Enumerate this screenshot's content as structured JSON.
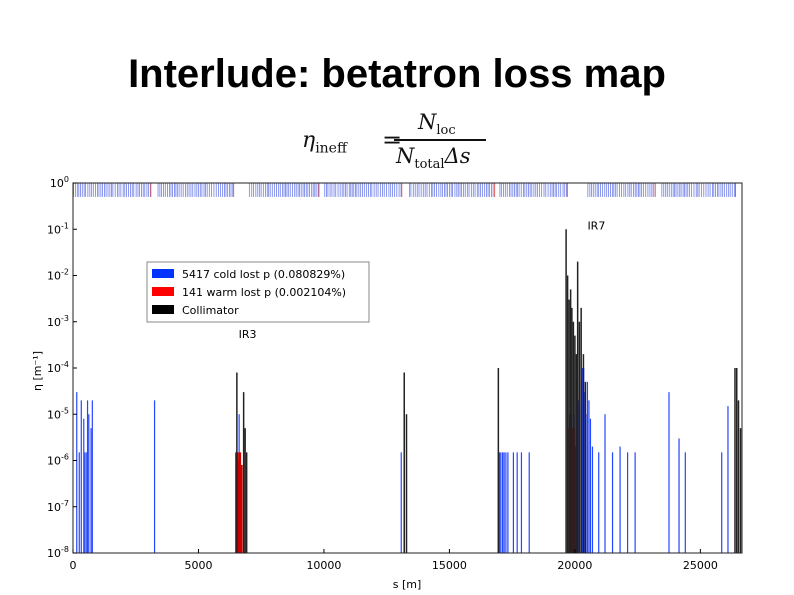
{
  "slide": {
    "title": "Interlude: betatron loss map",
    "formula": {
      "lhs": "η",
      "lhs_sub": "ineff",
      "eq": "=",
      "num": "N",
      "num_sub": "loc",
      "den": "N",
      "den_sub": "total",
      "den_tail": "Δs"
    }
  },
  "chart_data": {
    "type": "bar",
    "title": "",
    "xlabel": "s [m]",
    "ylabel": "η [m⁻¹]",
    "xlim": [
      0,
      26659
    ],
    "ylim": [
      1e-08,
      1
    ],
    "yscale": "log",
    "xticks": [
      0,
      5000,
      10000,
      15000,
      20000,
      25000
    ],
    "xtick_labels": [
      "0",
      "5000",
      "10000",
      "15000",
      "20000",
      "25000"
    ],
    "yticks": [
      1e-08,
      1e-07,
      1e-06,
      1e-05,
      0.0001,
      0.001,
      0.01,
      0.1,
      1
    ],
    "ytick_labels": [
      {
        "base": "10",
        "exp": "-8"
      },
      {
        "base": "10",
        "exp": "-7"
      },
      {
        "base": "10",
        "exp": "-6"
      },
      {
        "base": "10",
        "exp": "-5"
      },
      {
        "base": "10",
        "exp": "-4"
      },
      {
        "base": "10",
        "exp": "-3"
      },
      {
        "base": "10",
        "exp": "-2"
      },
      {
        "base": "10",
        "exp": "-1"
      },
      {
        "base": "10",
        "exp": "0"
      }
    ],
    "annotations": [
      {
        "text": "IR7",
        "x": 20500,
        "y": 0.1
      },
      {
        "text": "IR3",
        "x": 6600,
        "y": 0.00045
      }
    ],
    "legend": {
      "placement": "upper-left",
      "entries": [
        {
          "label": "5417 cold lost p (0.080829%)",
          "color": "#0033ff"
        },
        {
          "label": "141 warm lost p (0.002104%)",
          "color": "#ff0000"
        },
        {
          "label": "Collimator",
          "color": "#000000"
        }
      ]
    },
    "aperture_band": {
      "ymin": 0.5,
      "ymax": 1,
      "color": "#6f7fe8",
      "warm_color": "#e06060",
      "gaps": [
        [
          3100,
          3300
        ],
        [
          6400,
          7000
        ],
        [
          9800,
          10000
        ],
        [
          13100,
          13400
        ],
        [
          16800,
          17000
        ],
        [
          19700,
          20500
        ],
        [
          23200,
          23400
        ],
        [
          26400,
          26659
        ]
      ]
    },
    "series": [
      {
        "name": "5417 cold lost p (0.080829%)",
        "color": "#2646ff",
        "x": [
          150,
          250,
          330,
          430,
          480,
          550,
          580,
          630,
          720,
          770,
          3250,
          6550,
          6620,
          13080,
          16950,
          17000,
          17050,
          17120,
          17180,
          17250,
          17330,
          17550,
          17700,
          17870,
          18180,
          19950,
          20080,
          20150,
          20260,
          20300,
          20350,
          20390,
          20440,
          20500,
          20560,
          20620,
          20700,
          20950,
          21200,
          21500,
          21800,
          22100,
          22400,
          23750,
          24150,
          24400,
          25850,
          26100
        ],
        "values": [
          3e-05,
          1.5e-06,
          2e-05,
          8e-06,
          1.5e-06,
          1.5e-06,
          2e-05,
          1e-05,
          5e-06,
          2e-05,
          2e-05,
          1.5e-06,
          1e-05,
          1.5e-06,
          1.5e-06,
          1.5e-06,
          1.5e-06,
          1.5e-06,
          1.5e-06,
          1.5e-06,
          1.5e-06,
          1.5e-06,
          1.5e-06,
          1.5e-06,
          1.5e-06,
          1e-05,
          5e-06,
          2e-05,
          5e-05,
          0.0001,
          0.0001,
          3e-05,
          1e-05,
          5e-05,
          2e-05,
          8e-06,
          2e-06,
          1.5e-06,
          1e-05,
          1.5e-06,
          2e-06,
          1.5e-06,
          1.5e-06,
          3e-05,
          3e-06,
          1.5e-06,
          1.5e-06,
          1.5e-05
        ]
      },
      {
        "name": "141 warm lost p (0.002104%)",
        "color": "#cc0000",
        "x": [
          6520,
          6580,
          6640,
          6700,
          19790,
          19830,
          19880,
          19920,
          19960,
          20010
        ],
        "values": [
          1.5e-06,
          1e-06,
          1.5e-06,
          8e-07,
          5e-06,
          1e-05,
          3e-06,
          1.5e-06,
          5e-06,
          2e-06
        ],
        "width": 3
      },
      {
        "name": "Collimator",
        "color": "#222222",
        "x": [
          6530,
          6800,
          6860,
          6920,
          13200,
          13290,
          16950,
          19650,
          19710,
          19770,
          19830,
          19880,
          19940,
          20000,
          20060,
          20110,
          20180,
          20250,
          20340,
          20420,
          26380,
          26450,
          26520,
          26600
        ],
        "values": [
          8e-05,
          3e-05,
          5e-06,
          1.5e-06,
          8e-05,
          1e-05,
          0.0001,
          0.1,
          0.01,
          0.003,
          0.005,
          0.002,
          0.001,
          0.0005,
          0.0002,
          0.02,
          0.001,
          0.002,
          0.0002,
          5e-05,
          0.0001,
          0.0001,
          2e-05,
          5e-06
        ],
        "width": 1.5
      }
    ]
  }
}
